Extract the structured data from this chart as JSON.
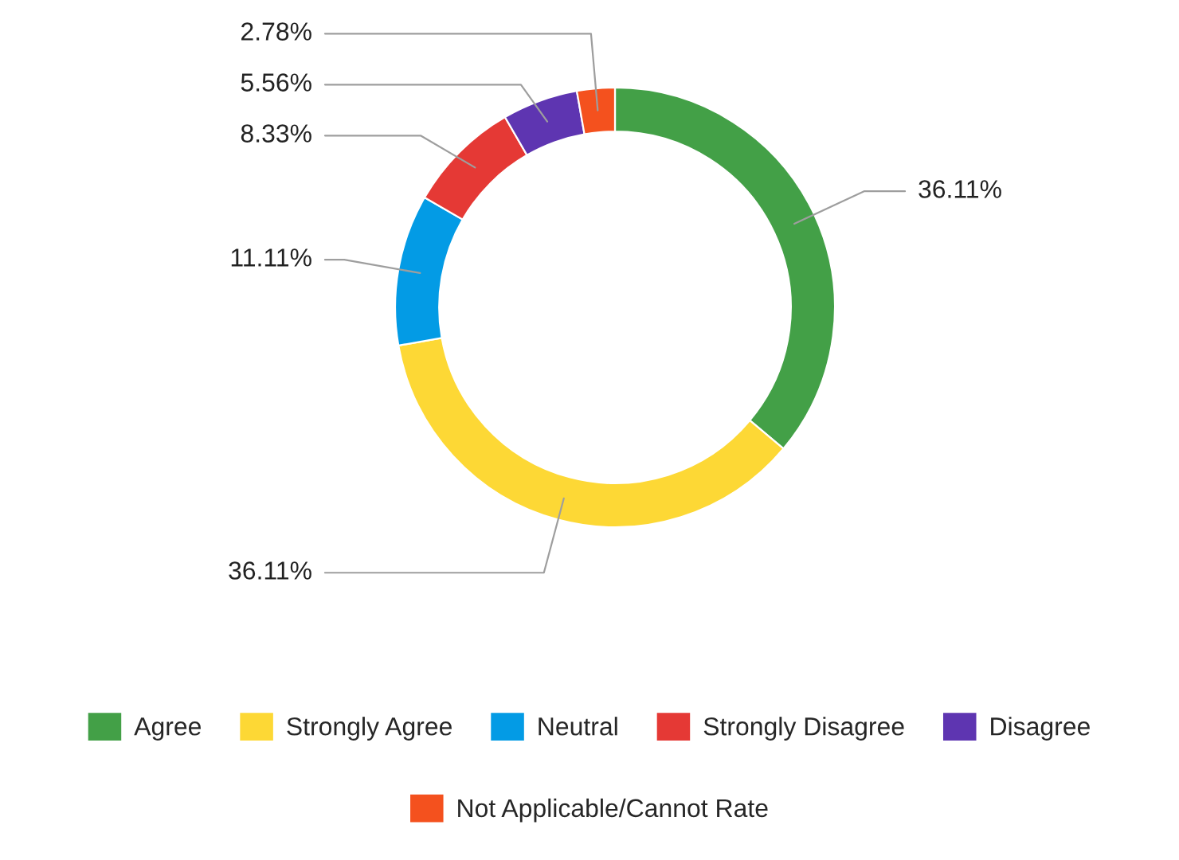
{
  "chart_data": {
    "type": "donut",
    "categories": [
      "Agree",
      "Strongly Agree",
      "Neutral",
      "Strongly Disagree",
      "Disagree",
      "Not Applicable/Cannot Rate"
    ],
    "values": [
      36.11,
      36.11,
      11.11,
      8.33,
      5.56,
      2.78
    ],
    "colors": [
      "#43a047",
      "#fdd835",
      "#039be5",
      "#e53935",
      "#5e35b1",
      "#f4511e"
    ],
    "value_labels": [
      "36.11%",
      "36.11%",
      "11.11%",
      "8.33%",
      "5.56%",
      "2.78%"
    ],
    "legend": "bottom"
  }
}
